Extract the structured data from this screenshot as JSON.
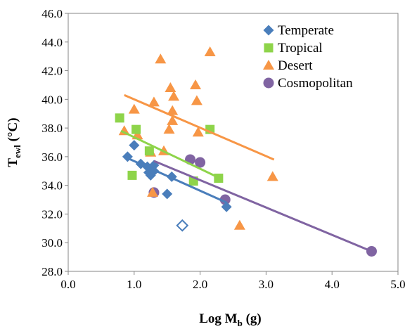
{
  "chart_data": {
    "type": "scatter",
    "xlabel": "Log M",
    "xlabel_sub": "b",
    "xlabel_unit": " (g)",
    "ylabel": "T",
    "ylabel_sub": "ewl",
    "ylabel_unit": " (°C)",
    "xlim": [
      0.0,
      5.0
    ],
    "ylim": [
      28.0,
      46.0
    ],
    "x_ticks": [
      0.0,
      1.0,
      2.0,
      3.0,
      4.0,
      5.0
    ],
    "x_tick_labels": [
      "0.0",
      "1.0",
      "2.0",
      "3.0",
      "4.0",
      "5.0"
    ],
    "y_ticks": [
      28,
      30,
      32,
      34,
      36,
      38,
      40,
      42,
      44,
      46
    ],
    "y_tick_labels": [
      "28.0",
      "30.0",
      "32.0",
      "34.0",
      "36.0",
      "38.0",
      "40.0",
      "42.0",
      "44.0",
      "46.0"
    ],
    "grid": false,
    "legend_position": "top-right",
    "series": [
      {
        "name": "Temperate",
        "marker": "diamond",
        "color": "#4a7ebb",
        "points": [
          [
            0.9,
            36.0
          ],
          [
            1.0,
            36.8
          ],
          [
            1.1,
            35.5
          ],
          [
            1.2,
            35.3
          ],
          [
            1.22,
            34.9
          ],
          [
            1.25,
            34.7
          ],
          [
            1.3,
            35.4
          ],
          [
            1.3,
            35.0
          ],
          [
            1.5,
            33.4
          ],
          [
            1.57,
            34.6
          ],
          [
            2.4,
            32.5
          ]
        ],
        "outlier": [
          1.73,
          31.2
        ],
        "trendline": [
          [
            0.85,
            36.0
          ],
          [
            2.4,
            32.8
          ]
        ]
      },
      {
        "name": "Tropical",
        "marker": "square",
        "color": "#8ed44a",
        "points": [
          [
            0.78,
            38.7
          ],
          [
            0.97,
            34.7
          ],
          [
            1.03,
            37.9
          ],
          [
            1.23,
            36.4
          ],
          [
            1.9,
            34.3
          ],
          [
            2.15,
            37.9
          ],
          [
            2.28,
            34.5
          ]
        ],
        "trendline": [
          [
            0.8,
            37.8
          ],
          [
            2.3,
            34.5
          ]
        ]
      },
      {
        "name": "Desert",
        "marker": "triangle",
        "color": "#f79646",
        "points": [
          [
            0.85,
            37.8
          ],
          [
            1.0,
            39.3
          ],
          [
            1.05,
            37.5
          ],
          [
            1.25,
            36.3
          ],
          [
            1.28,
            33.5
          ],
          [
            1.3,
            39.8
          ],
          [
            1.4,
            42.8
          ],
          [
            1.45,
            36.4
          ],
          [
            1.53,
            37.9
          ],
          [
            1.55,
            40.8
          ],
          [
            1.58,
            39.2
          ],
          [
            1.58,
            38.5
          ],
          [
            1.6,
            40.2
          ],
          [
            1.93,
            41.0
          ],
          [
            1.95,
            39.9
          ],
          [
            1.97,
            37.7
          ],
          [
            2.15,
            43.3
          ],
          [
            2.6,
            31.2
          ],
          [
            3.1,
            34.6
          ]
        ],
        "trendline": [
          [
            0.85,
            40.3
          ],
          [
            3.12,
            35.8
          ]
        ]
      },
      {
        "name": "Cosmopolitan",
        "marker": "circle",
        "color": "#8064a2",
        "points": [
          [
            1.3,
            33.5
          ],
          [
            1.85,
            35.8
          ],
          [
            2.0,
            35.6
          ],
          [
            2.38,
            33.0
          ],
          [
            4.6,
            29.4
          ]
        ],
        "trendline": [
          [
            1.3,
            35.7
          ],
          [
            4.6,
            29.4
          ]
        ]
      }
    ]
  }
}
